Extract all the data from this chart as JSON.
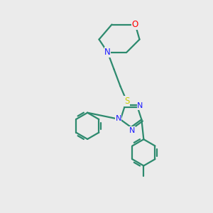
{
  "bg_color": "#ebebeb",
  "bond_color": "#2d8a6e",
  "n_color": "#1a1aff",
  "o_color": "#ff0000",
  "s_color": "#cccc00",
  "line_width": 1.6,
  "fig_size": [
    3.0,
    3.0
  ],
  "dpi": 100,
  "xlim": [
    0,
    10
  ],
  "ylim": [
    0,
    10
  ]
}
